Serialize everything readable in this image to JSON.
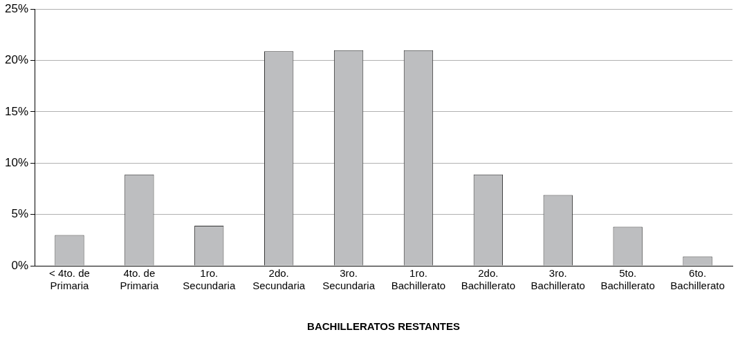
{
  "chart_data": {
    "type": "bar",
    "xlabel": "BACHILLERATOS RESTANTES",
    "categories": [
      "< 4to. de Primaria",
      "4to. de Primaria",
      "1ro. Secundaria",
      "2do. Secundaria",
      "3ro. Secundaria",
      "1ro. Bachillerato",
      "2do. Bachillerato",
      "3ro. Bachillerato",
      "5to. Bachillerato",
      "6to. Bachillerato"
    ],
    "values": [
      3,
      8.9,
      3.9,
      20.9,
      21,
      21,
      8.9,
      6.9,
      3.8,
      0.9
    ],
    "color": "#bdbec0",
    "ylim": [
      0,
      25
    ],
    "yticks": [
      {
        "value": 0,
        "label": "0%"
      },
      {
        "value": 5,
        "label": "5%"
      },
      {
        "value": 10,
        "label": "10%"
      },
      {
        "value": 15,
        "label": "15%"
      },
      {
        "value": 20,
        "label": "20%"
      },
      {
        "value": 25,
        "label": "25%"
      }
    ],
    "grid": "y",
    "legend": false
  }
}
